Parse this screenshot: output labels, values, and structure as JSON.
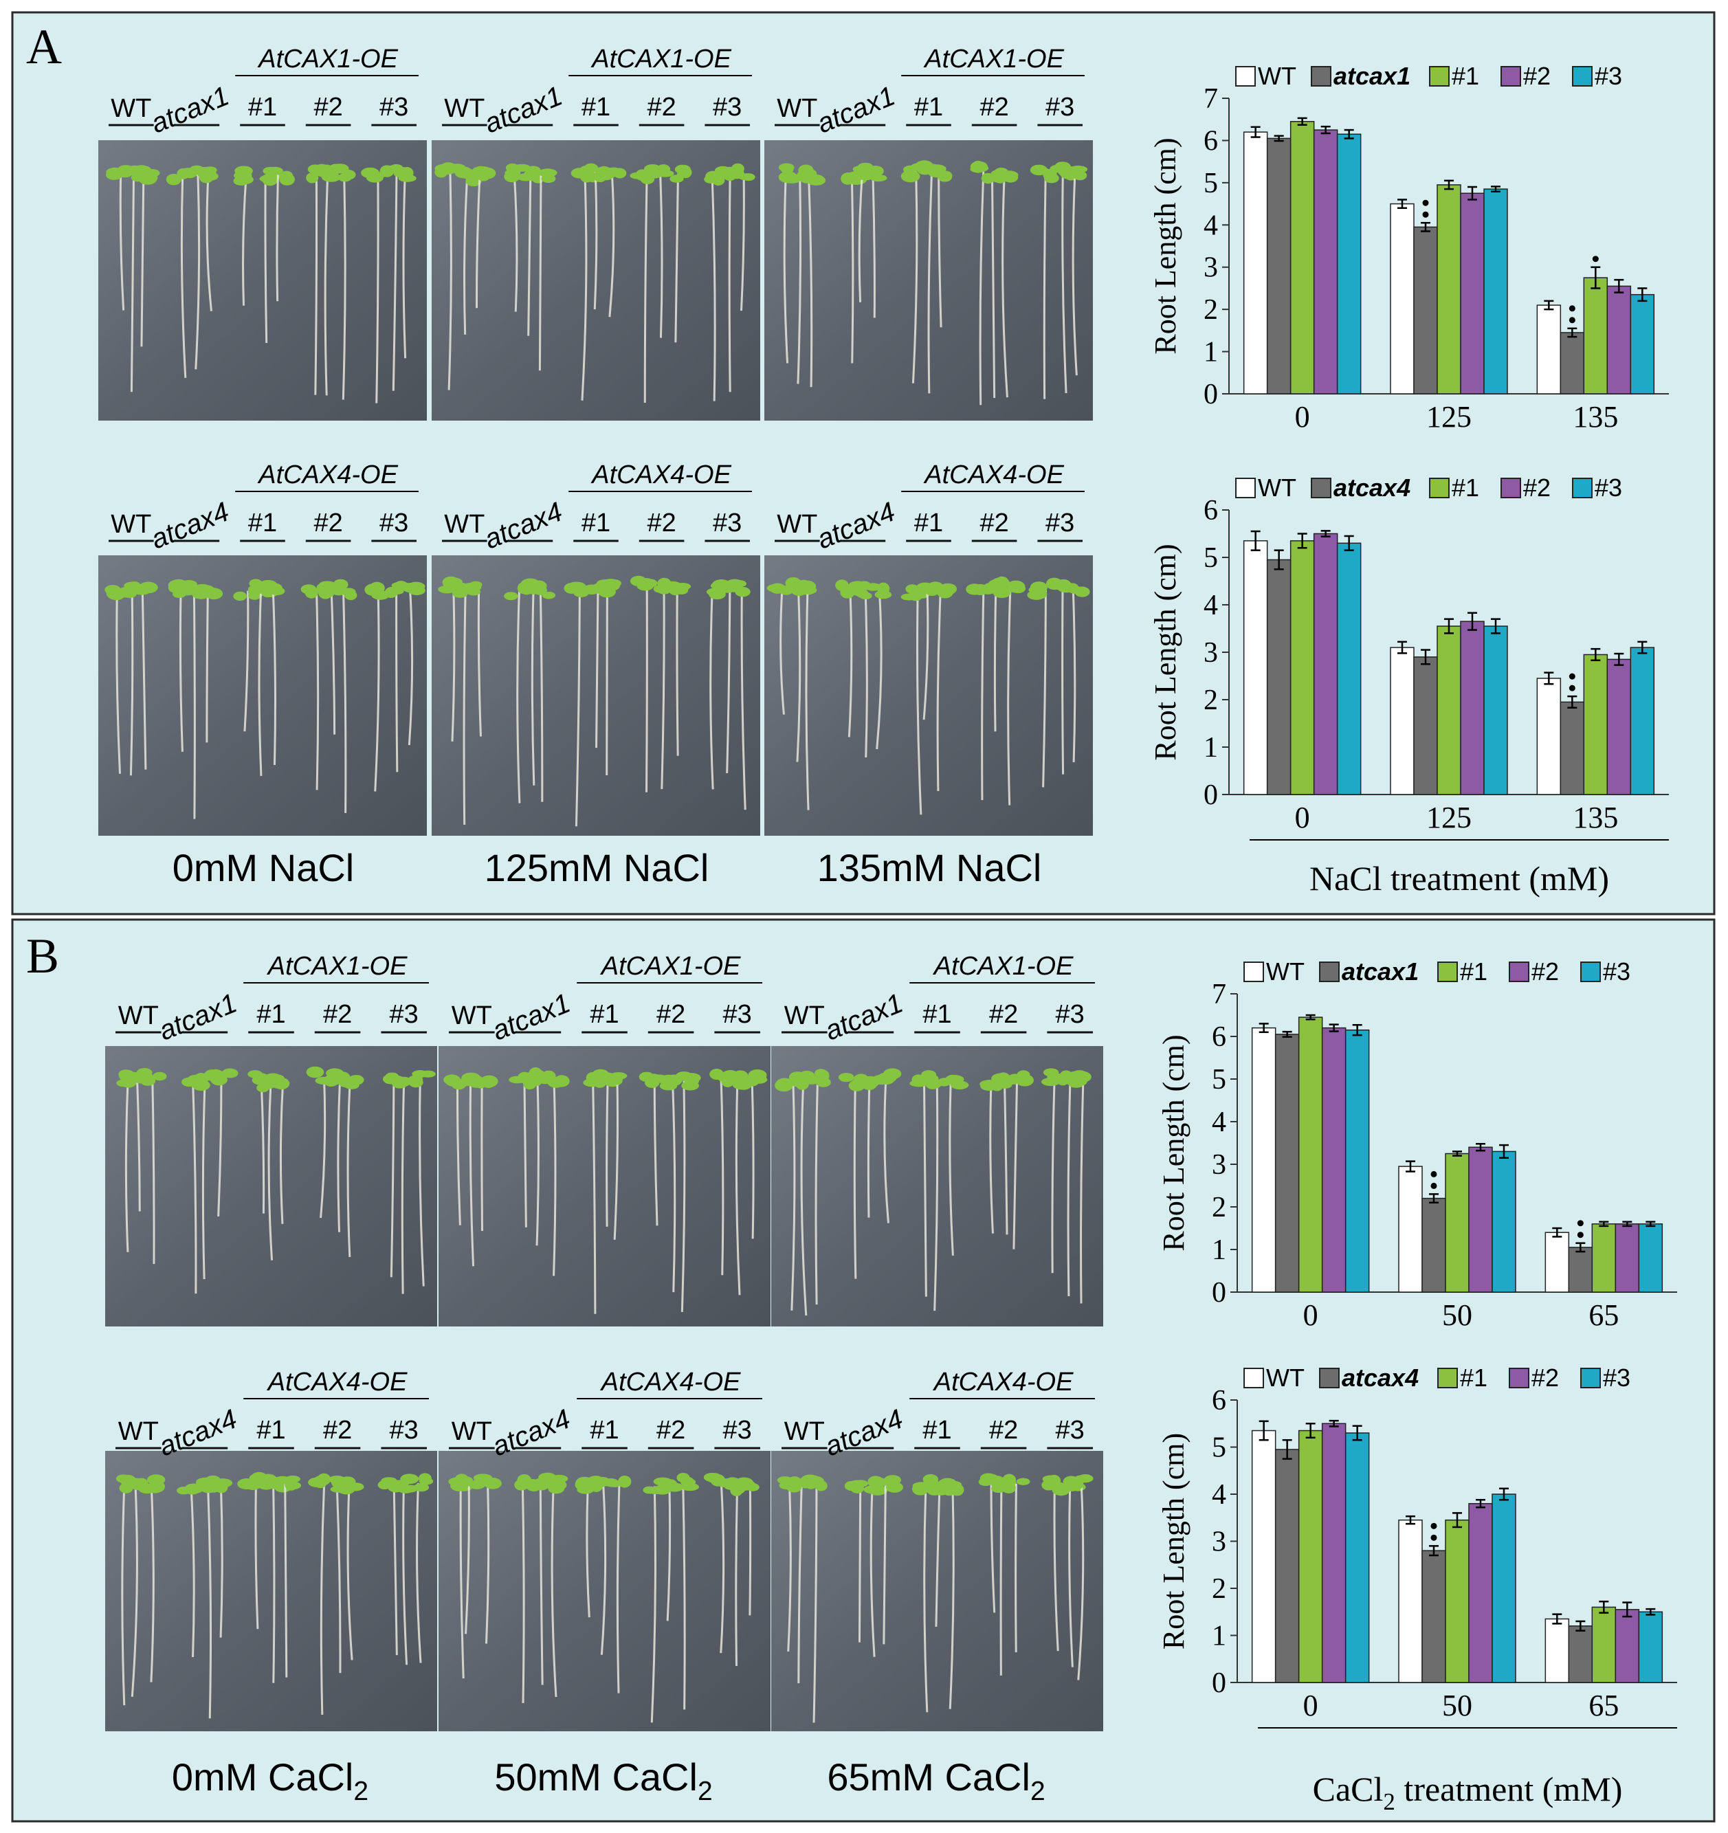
{
  "panels": [
    {
      "letter": "A",
      "photo_rows": [
        {
          "headers": [
            {
              "wt": "WT",
              "mutant": "atcax1",
              "oe": "AtCAX1-OE",
              "lines": [
                "#1",
                "#2",
                "#3"
              ]
            },
            {
              "wt": "WT",
              "mutant": "atcax1",
              "oe": "AtCAX1-OE",
              "lines": [
                "#1",
                "#2",
                "#3"
              ]
            },
            {
              "wt": "WT",
              "mutant": "atcax1",
              "oe": "AtCAX1-OE",
              "lines": [
                "#1",
                "#2",
                "#3"
              ]
            }
          ]
        },
        {
          "headers": [
            {
              "wt": "WT",
              "mutant": "atcax4",
              "oe": "AtCAX4-OE",
              "lines": [
                "#1",
                "#2",
                "#3"
              ]
            },
            {
              "wt": "WT",
              "mutant": "atcax4",
              "oe": "AtCAX4-OE",
              "lines": [
                "#1",
                "#2",
                "#3"
              ]
            },
            {
              "wt": "WT",
              "mutant": "atcax4",
              "oe": "AtCAX4-OE",
              "lines": [
                "#1",
                "#2",
                "#3"
              ]
            }
          ]
        }
      ],
      "conditions": [
        {
          "text": "0mM NaCl",
          "sub": "",
          "tail": ""
        },
        {
          "text": "125mM NaCl",
          "sub": "",
          "tail": ""
        },
        {
          "text": "135mM NaCl",
          "sub": "",
          "tail": ""
        }
      ],
      "x_title": {
        "pre": "NaCl treatment (mM)",
        "sub": "",
        "post": ""
      }
    },
    {
      "letter": "B",
      "photo_rows": [
        {
          "headers": [
            {
              "wt": "WT",
              "mutant": "atcax1",
              "oe": "AtCAX1-OE",
              "lines": [
                "#1",
                "#2",
                "#3"
              ]
            },
            {
              "wt": "WT",
              "mutant": "atcax1",
              "oe": "AtCAX1-OE",
              "lines": [
                "#1",
                "#2",
                "#3"
              ]
            },
            {
              "wt": "WT",
              "mutant": "atcax1",
              "oe": "AtCAX1-OE",
              "lines": [
                "#1",
                "#2",
                "#3"
              ]
            }
          ]
        },
        {
          "headers": [
            {
              "wt": "WT",
              "mutant": "atcax4",
              "oe": "AtCAX4-OE",
              "lines": [
                "#1",
                "#2",
                "#3"
              ]
            },
            {
              "wt": "WT",
              "mutant": "atcax4",
              "oe": "AtCAX4-OE",
              "lines": [
                "#1",
                "#2",
                "#3"
              ]
            },
            {
              "wt": "WT",
              "mutant": "atcax4",
              "oe": "AtCAX4-OE",
              "lines": [
                "#1",
                "#2",
                "#3"
              ]
            }
          ]
        }
      ],
      "conditions": [
        {
          "text": "0mM CaCl",
          "sub": "2",
          "tail": ""
        },
        {
          "text": "50mM CaCl",
          "sub": "2",
          "tail": ""
        },
        {
          "text": "65mM CaCl",
          "sub": "2",
          "tail": ""
        }
      ],
      "x_title": {
        "pre": "CaCl",
        "sub": "2",
        "post": " treatment (mM)"
      }
    }
  ],
  "chart_data": [
    {
      "type": "bar",
      "panel": "A",
      "ylabel": "Root Length (cm)",
      "ylim": [
        0,
        7
      ],
      "yticks": [
        0,
        1,
        2,
        3,
        4,
        5,
        6,
        7
      ],
      "categories": [
        "0",
        "125",
        "135"
      ],
      "series": [
        {
          "name": "WT",
          "color": "#ffffff",
          "values": [
            6.2,
            4.5,
            2.1
          ],
          "errors": [
            0.12,
            0.1,
            0.1
          ]
        },
        {
          "name": "atcax1",
          "color": "#6d6d6d",
          "values": [
            6.05,
            3.95,
            1.45
          ],
          "errors": [
            0.06,
            0.1,
            0.1
          ]
        },
        {
          "name": "#1",
          "color": "#8cc13f",
          "values": [
            6.45,
            4.95,
            2.75
          ],
          "errors": [
            0.08,
            0.1,
            0.25
          ]
        },
        {
          "name": "#2",
          "color": "#8e5aa5",
          "values": [
            6.25,
            4.75,
            2.55
          ],
          "errors": [
            0.08,
            0.15,
            0.15
          ]
        },
        {
          "name": "#3",
          "color": "#1fa9c6",
          "values": [
            6.15,
            4.85,
            2.35
          ],
          "errors": [
            0.1,
            0.06,
            0.15
          ]
        }
      ],
      "significance": [
        {
          "category": 1,
          "series": 1,
          "mark": "**"
        },
        {
          "category": 2,
          "series": 1,
          "mark": "**"
        },
        {
          "category": 2,
          "series": 2,
          "mark": "*"
        }
      ]
    },
    {
      "type": "bar",
      "panel": "A",
      "ylabel": "Root Length (cm)",
      "xlabel": "NaCl treatment (mM)",
      "ylim": [
        0,
        6
      ],
      "yticks": [
        0,
        1,
        2,
        3,
        4,
        5,
        6
      ],
      "categories": [
        "0",
        "125",
        "135"
      ],
      "series": [
        {
          "name": "WT",
          "color": "#ffffff",
          "values": [
            5.35,
            3.1,
            2.45
          ],
          "errors": [
            0.2,
            0.12,
            0.12
          ]
        },
        {
          "name": "atcax4",
          "color": "#6d6d6d",
          "values": [
            4.95,
            2.9,
            1.95
          ],
          "errors": [
            0.2,
            0.15,
            0.12
          ]
        },
        {
          "name": "#1",
          "color": "#8cc13f",
          "values": [
            5.35,
            3.55,
            2.95
          ],
          "errors": [
            0.15,
            0.15,
            0.12
          ]
        },
        {
          "name": "#2",
          "color": "#8e5aa5",
          "values": [
            5.5,
            3.65,
            2.85
          ],
          "errors": [
            0.06,
            0.18,
            0.12
          ]
        },
        {
          "name": "#3",
          "color": "#1fa9c6",
          "values": [
            5.3,
            3.55,
            3.1
          ],
          "errors": [
            0.15,
            0.15,
            0.12
          ]
        }
      ],
      "significance": [
        {
          "category": 2,
          "series": 1,
          "mark": "**"
        }
      ]
    },
    {
      "type": "bar",
      "panel": "B",
      "ylabel": "Root Length (cm)",
      "ylim": [
        0,
        7
      ],
      "yticks": [
        0,
        1,
        2,
        3,
        4,
        5,
        6,
        7
      ],
      "categories": [
        "0",
        "50",
        "65"
      ],
      "series": [
        {
          "name": "WT",
          "color": "#ffffff",
          "values": [
            6.2,
            2.95,
            1.4
          ],
          "errors": [
            0.1,
            0.12,
            0.1
          ]
        },
        {
          "name": "atcax1",
          "color": "#6d6d6d",
          "values": [
            6.05,
            2.2,
            1.05
          ],
          "errors": [
            0.06,
            0.1,
            0.1
          ]
        },
        {
          "name": "#1",
          "color": "#8cc13f",
          "values": [
            6.45,
            3.25,
            1.6
          ],
          "errors": [
            0.05,
            0.05,
            0.05
          ]
        },
        {
          "name": "#2",
          "color": "#8e5aa5",
          "values": [
            6.2,
            3.4,
            1.6
          ],
          "errors": [
            0.08,
            0.08,
            0.05
          ]
        },
        {
          "name": "#3",
          "color": "#1fa9c6",
          "values": [
            6.15,
            3.3,
            1.6
          ],
          "errors": [
            0.12,
            0.15,
            0.05
          ]
        }
      ],
      "significance": [
        {
          "category": 1,
          "series": 1,
          "mark": "**"
        },
        {
          "category": 2,
          "series": 1,
          "mark": "**"
        }
      ]
    },
    {
      "type": "bar",
      "panel": "B",
      "ylabel": "Root Length (cm)",
      "xlabel": "CaCl2 treatment (mM)",
      "ylim": [
        0,
        6
      ],
      "yticks": [
        0,
        1,
        2,
        3,
        4,
        5,
        6
      ],
      "categories": [
        "0",
        "50",
        "65"
      ],
      "series": [
        {
          "name": "WT",
          "color": "#ffffff",
          "values": [
            5.35,
            3.45,
            1.35
          ],
          "errors": [
            0.2,
            0.08,
            0.1
          ]
        },
        {
          "name": "atcax4",
          "color": "#6d6d6d",
          "values": [
            4.95,
            2.8,
            1.2
          ],
          "errors": [
            0.2,
            0.1,
            0.1
          ]
        },
        {
          "name": "#1",
          "color": "#8cc13f",
          "values": [
            5.35,
            3.45,
            1.6
          ],
          "errors": [
            0.15,
            0.15,
            0.12
          ]
        },
        {
          "name": "#2",
          "color": "#8e5aa5",
          "values": [
            5.5,
            3.8,
            1.55
          ],
          "errors": [
            0.06,
            0.08,
            0.15
          ]
        },
        {
          "name": "#3",
          "color": "#1fa9c6",
          "values": [
            5.3,
            4.0,
            1.5
          ],
          "errors": [
            0.15,
            0.12,
            0.06
          ]
        }
      ],
      "significance": [
        {
          "category": 1,
          "series": 1,
          "mark": "**"
        }
      ]
    }
  ]
}
